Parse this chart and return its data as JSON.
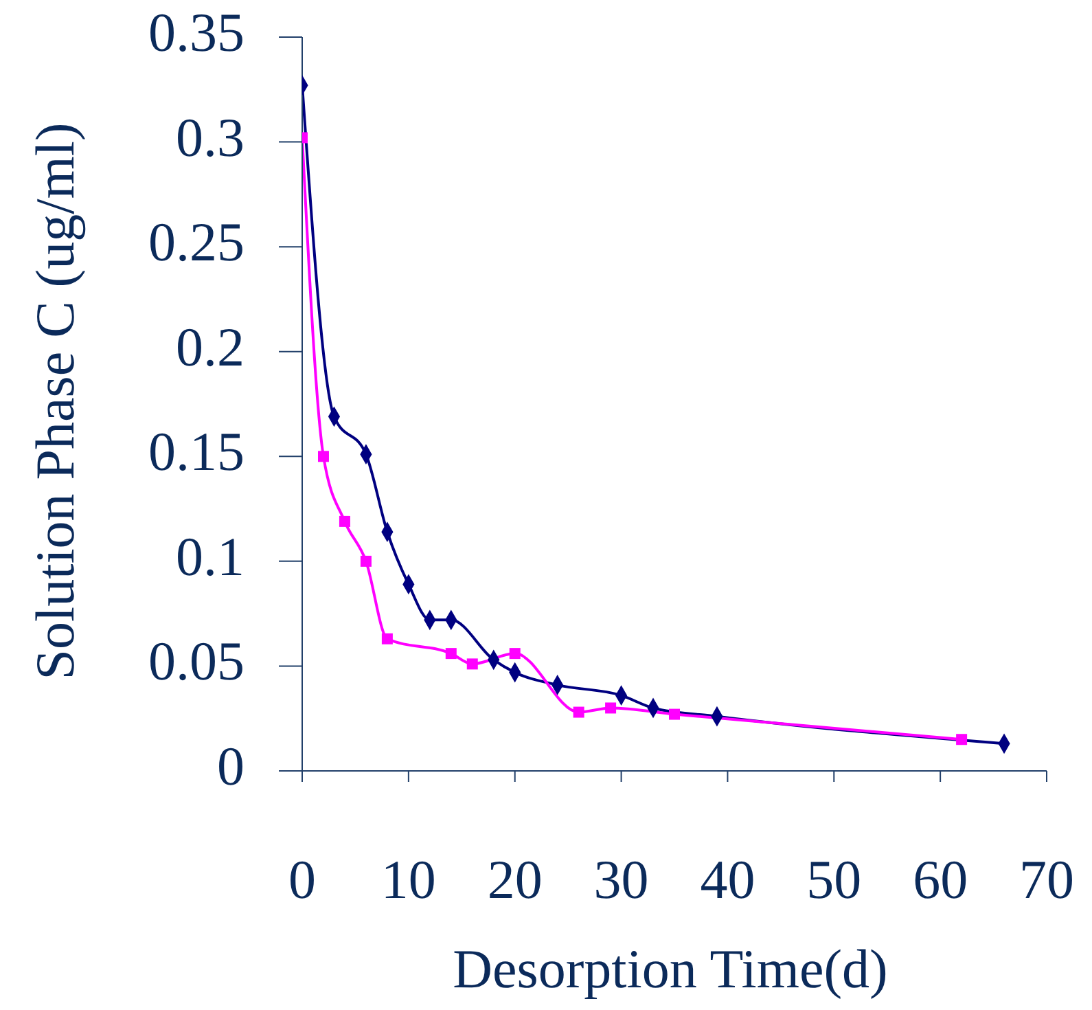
{
  "chart_data": {
    "type": "line",
    "xlabel": "Desorption Time(d)",
    "ylabel": "Solution Phase C (ug/ml)",
    "xlim": [
      0,
      70
    ],
    "xticks": [
      0,
      10,
      20,
      30,
      40,
      50,
      60,
      70
    ],
    "ylim": [
      0,
      0.35
    ],
    "yticks": [
      0,
      0.05,
      0.1,
      0.15,
      0.2,
      0.25,
      0.3,
      0.35
    ],
    "grid": false,
    "line_style": "solid",
    "series": [
      {
        "color": "#000080",
        "marker": "diamond",
        "x": [
          0,
          3,
          6,
          8,
          10,
          12,
          14,
          18,
          20,
          24,
          30,
          33,
          39,
          66
        ],
        "values": [
          0.327,
          0.169,
          0.151,
          0.114,
          0.089,
          0.072,
          0.072,
          0.053,
          0.047,
          0.041,
          0.036,
          0.03,
          0.026,
          0.013
        ]
      },
      {
        "color": "#ff00ff",
        "marker": "square",
        "x": [
          0,
          2,
          4,
          6,
          8,
          14,
          16,
          20,
          26,
          29,
          35,
          62
        ],
        "values": [
          0.302,
          0.15,
          0.119,
          0.1,
          0.063,
          0.056,
          0.051,
          0.056,
          0.028,
          0.03,
          0.027,
          0.015
        ]
      }
    ]
  }
}
